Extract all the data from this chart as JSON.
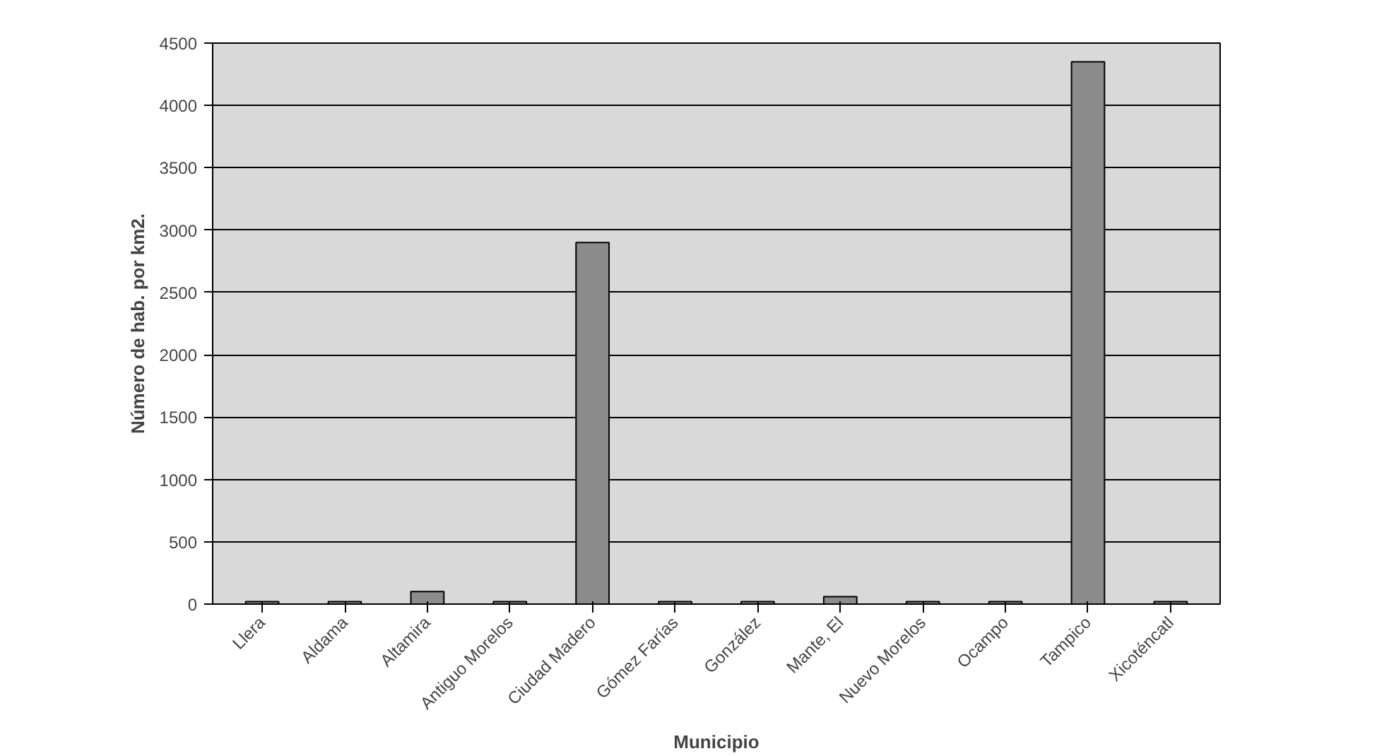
{
  "chart_data": {
    "type": "bar",
    "xlabel": "Municipio",
    "ylabel": "Número de hab. por km2.",
    "categories": [
      "Llera",
      "Aldama",
      "Altamira",
      "Antiguo Morelos",
      "Ciudad Madero",
      "Gómez Farías",
      "González",
      "Mante, El",
      "Nuevo Morelos",
      "Ocampo",
      "Tampico",
      "Xicoténcatl"
    ],
    "values": [
      20,
      20,
      100,
      20,
      2900,
      20,
      20,
      60,
      20,
      20,
      4350,
      20
    ],
    "color": "#8c8c8c",
    "ylim": [
      0,
      4500
    ],
    "yticks": [
      0,
      500,
      1000,
      1500,
      2000,
      2500,
      3000,
      3500,
      4000,
      4500
    ],
    "grid": "y"
  }
}
